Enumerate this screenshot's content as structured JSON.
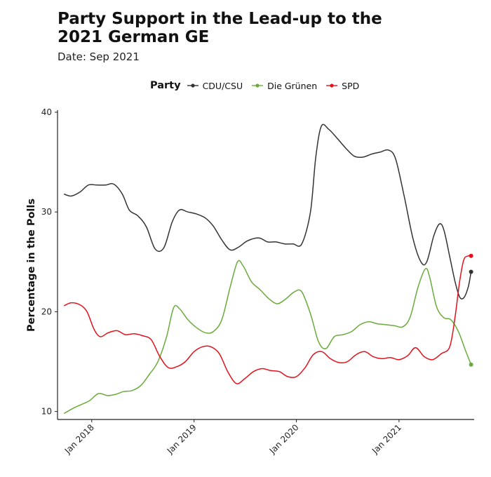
{
  "chart_data": {
    "type": "line",
    "title": "Party Support in the Lead-up to the 2021 German GE",
    "subtitle": "Date: Sep 2021",
    "xlabel": "",
    "ylabel": "Percentage in the Polls",
    "legend_title": "Party",
    "legend_position": "top",
    "grid": false,
    "xlim": [
      "2017-09-01",
      "2021-09-26"
    ],
    "ylim": [
      9.2,
      40
    ],
    "x_ticks": [
      {
        "date": "2018-01-01",
        "label": "Jan 2018"
      },
      {
        "date": "2019-01-01",
        "label": "Jan 2019"
      },
      {
        "date": "2020-01-01",
        "label": "Jan 2020"
      },
      {
        "date": "2021-01-01",
        "label": "Jan 2021"
      }
    ],
    "y_ticks": [
      10,
      20,
      30,
      40
    ],
    "series": [
      {
        "name": "CDU/CSU",
        "color": "#333333",
        "points": [
          [
            "2017-09-24",
            31.8
          ],
          [
            "2017-10-20",
            31.6
          ],
          [
            "2017-11-20",
            32.0
          ],
          [
            "2017-12-20",
            32.7
          ],
          [
            "2018-01-20",
            32.7
          ],
          [
            "2018-02-20",
            32.7
          ],
          [
            "2018-03-20",
            32.8
          ],
          [
            "2018-04-20",
            31.8
          ],
          [
            "2018-05-15",
            30.2
          ],
          [
            "2018-06-15",
            29.6
          ],
          [
            "2018-07-15",
            28.5
          ],
          [
            "2018-08-15",
            26.3
          ],
          [
            "2018-09-15",
            26.4
          ],
          [
            "2018-10-15",
            29.0
          ],
          [
            "2018-11-10",
            30.2
          ],
          [
            "2018-12-10",
            30.0
          ],
          [
            "2019-01-10",
            29.8
          ],
          [
            "2019-02-10",
            29.4
          ],
          [
            "2019-03-10",
            28.6
          ],
          [
            "2019-04-10",
            27.2
          ],
          [
            "2019-05-10",
            26.2
          ],
          [
            "2019-06-10",
            26.5
          ],
          [
            "2019-07-10",
            27.1
          ],
          [
            "2019-08-20",
            27.4
          ],
          [
            "2019-09-20",
            27.0
          ],
          [
            "2019-10-20",
            27.0
          ],
          [
            "2019-11-20",
            26.8
          ],
          [
            "2019-12-20",
            26.8
          ],
          [
            "2020-01-20",
            26.8
          ],
          [
            "2020-02-20",
            30.0
          ],
          [
            "2020-03-10",
            35.5
          ],
          [
            "2020-03-30",
            38.6
          ],
          [
            "2020-04-25",
            38.3
          ],
          [
            "2020-05-25",
            37.4
          ],
          [
            "2020-06-25",
            36.4
          ],
          [
            "2020-07-25",
            35.6
          ],
          [
            "2020-08-25",
            35.5
          ],
          [
            "2020-09-25",
            35.8
          ],
          [
            "2020-10-25",
            36.0
          ],
          [
            "2020-11-25",
            36.2
          ],
          [
            "2020-12-20",
            35.3
          ],
          [
            "2021-01-20",
            31.5
          ],
          [
            "2021-02-20",
            27.3
          ],
          [
            "2021-03-20",
            25.0
          ],
          [
            "2021-04-10",
            25.0
          ],
          [
            "2021-05-05",
            27.6
          ],
          [
            "2021-05-25",
            28.8
          ],
          [
            "2021-06-10",
            28.2
          ],
          [
            "2021-07-01",
            25.5
          ],
          [
            "2021-07-20",
            23.0
          ],
          [
            "2021-08-05",
            21.5
          ],
          [
            "2021-08-20",
            21.4
          ],
          [
            "2021-09-05",
            22.5
          ],
          [
            "2021-09-15",
            24.0
          ]
        ]
      },
      {
        "name": "Die Grünen",
        "color": "#6aab3b",
        "points": [
          [
            "2017-09-24",
            9.8
          ],
          [
            "2017-10-25",
            10.3
          ],
          [
            "2017-11-25",
            10.7
          ],
          [
            "2017-12-25",
            11.1
          ],
          [
            "2018-01-25",
            11.8
          ],
          [
            "2018-02-25",
            11.6
          ],
          [
            "2018-03-25",
            11.7
          ],
          [
            "2018-04-25",
            12.0
          ],
          [
            "2018-05-25",
            12.1
          ],
          [
            "2018-06-25",
            12.6
          ],
          [
            "2018-07-25",
            13.7
          ],
          [
            "2018-08-25",
            15.0
          ],
          [
            "2018-09-25",
            17.5
          ],
          [
            "2018-10-20",
            20.4
          ],
          [
            "2018-11-10",
            20.3
          ],
          [
            "2018-12-10",
            19.2
          ],
          [
            "2019-01-10",
            18.4
          ],
          [
            "2019-02-10",
            17.9
          ],
          [
            "2019-03-10",
            18.0
          ],
          [
            "2019-04-10",
            19.2
          ],
          [
            "2019-05-10",
            22.5
          ],
          [
            "2019-06-05",
            25.0
          ],
          [
            "2019-06-25",
            24.6
          ],
          [
            "2019-07-25",
            23.0
          ],
          [
            "2019-08-25",
            22.2
          ],
          [
            "2019-09-25",
            21.3
          ],
          [
            "2019-10-25",
            20.8
          ],
          [
            "2019-11-25",
            21.3
          ],
          [
            "2019-12-25",
            22.0
          ],
          [
            "2020-01-20",
            22.0
          ],
          [
            "2020-02-20",
            19.8
          ],
          [
            "2020-03-20",
            17.0
          ],
          [
            "2020-04-15",
            16.3
          ],
          [
            "2020-05-15",
            17.5
          ],
          [
            "2020-06-15",
            17.7
          ],
          [
            "2020-07-15",
            18.0
          ],
          [
            "2020-08-15",
            18.7
          ],
          [
            "2020-09-15",
            19.0
          ],
          [
            "2020-10-15",
            18.8
          ],
          [
            "2020-11-15",
            18.7
          ],
          [
            "2020-12-15",
            18.6
          ],
          [
            "2021-01-15",
            18.5
          ],
          [
            "2021-02-10",
            19.5
          ],
          [
            "2021-03-10",
            22.5
          ],
          [
            "2021-04-05",
            24.3
          ],
          [
            "2021-04-20",
            23.5
          ],
          [
            "2021-05-15",
            20.5
          ],
          [
            "2021-06-10",
            19.4
          ],
          [
            "2021-07-05",
            19.2
          ],
          [
            "2021-08-01",
            18.0
          ],
          [
            "2021-08-25",
            16.2
          ],
          [
            "2021-09-15",
            14.7
          ]
        ]
      },
      {
        "name": "SPD",
        "color": "#e3111b",
        "points": [
          [
            "2017-09-24",
            20.6
          ],
          [
            "2017-10-20",
            20.9
          ],
          [
            "2017-11-20",
            20.7
          ],
          [
            "2017-12-15",
            20.0
          ],
          [
            "2018-01-10",
            18.2
          ],
          [
            "2018-02-01",
            17.5
          ],
          [
            "2018-03-01",
            17.9
          ],
          [
            "2018-04-01",
            18.1
          ],
          [
            "2018-05-01",
            17.7
          ],
          [
            "2018-06-01",
            17.8
          ],
          [
            "2018-07-01",
            17.6
          ],
          [
            "2018-08-01",
            17.2
          ],
          [
            "2018-09-01",
            15.5
          ],
          [
            "2018-10-01",
            14.4
          ],
          [
            "2018-11-01",
            14.5
          ],
          [
            "2018-12-01",
            15.0
          ],
          [
            "2019-01-01",
            16.0
          ],
          [
            "2019-02-01",
            16.5
          ],
          [
            "2019-03-01",
            16.5
          ],
          [
            "2019-04-01",
            15.8
          ],
          [
            "2019-05-01",
            14.0
          ],
          [
            "2019-06-01",
            12.8
          ],
          [
            "2019-07-01",
            13.3
          ],
          [
            "2019-08-01",
            14.0
          ],
          [
            "2019-09-01",
            14.3
          ],
          [
            "2019-10-01",
            14.1
          ],
          [
            "2019-11-01",
            14.0
          ],
          [
            "2019-12-01",
            13.5
          ],
          [
            "2020-01-01",
            13.5
          ],
          [
            "2020-02-01",
            14.4
          ],
          [
            "2020-03-01",
            15.7
          ],
          [
            "2020-04-01",
            16.0
          ],
          [
            "2020-05-01",
            15.3
          ],
          [
            "2020-06-01",
            14.9
          ],
          [
            "2020-07-01",
            15.0
          ],
          [
            "2020-08-01",
            15.7
          ],
          [
            "2020-09-01",
            16.0
          ],
          [
            "2020-10-01",
            15.5
          ],
          [
            "2020-11-01",
            15.3
          ],
          [
            "2020-12-01",
            15.4
          ],
          [
            "2021-01-01",
            15.2
          ],
          [
            "2021-02-01",
            15.6
          ],
          [
            "2021-03-01",
            16.4
          ],
          [
            "2021-04-01",
            15.5
          ],
          [
            "2021-05-01",
            15.2
          ],
          [
            "2021-06-01",
            15.8
          ],
          [
            "2021-07-01",
            16.5
          ],
          [
            "2021-07-20",
            19.5
          ],
          [
            "2021-08-05",
            23.0
          ],
          [
            "2021-08-20",
            25.2
          ],
          [
            "2021-09-05",
            25.6
          ],
          [
            "2021-09-15",
            25.6
          ]
        ]
      }
    ]
  }
}
